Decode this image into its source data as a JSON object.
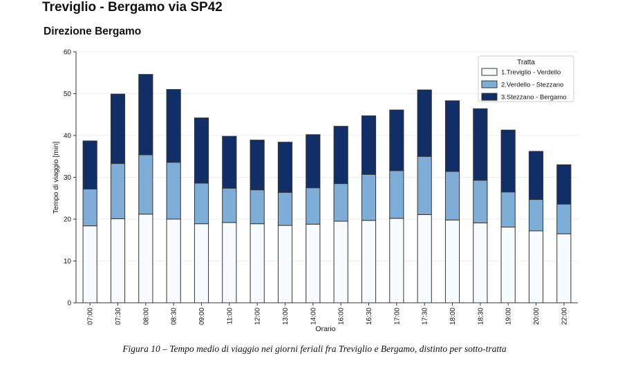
{
  "header": {
    "title": "Treviglio - Bergamo via SP42",
    "subtitle": "Direzione Bergamo"
  },
  "caption": "Figura 10 – Tempo medio di viaggio nei giorni feriali fra Treviglio e Bergamo, distinto per sotto-tratta",
  "colors": {
    "s1": "#f7fbff",
    "s2": "#7eadd8",
    "s3": "#122e66",
    "stroke": "#333333",
    "grid": "#eeeeee"
  },
  "chart_data": {
    "type": "bar",
    "stacked": true,
    "title": "Direzione Bergamo",
    "xlabel": "Orario",
    "ylabel": "Tempo di viaggio [min]",
    "ylim": [
      0,
      60
    ],
    "yticks": [
      0,
      10,
      20,
      30,
      40,
      50,
      60
    ],
    "grid": true,
    "legend": {
      "title": "Tratta",
      "placement": "top-right"
    },
    "categories": [
      "07:00",
      "07:30",
      "08:00",
      "08:30",
      "09:00",
      "11:00",
      "12:00",
      "13:00",
      "14:00",
      "16:00",
      "16:30",
      "17:00",
      "17:30",
      "18:00",
      "18:30",
      "19:00",
      "20:00",
      "22:00"
    ],
    "series": [
      {
        "name": "1.Treviglio - Verdello",
        "color": "#f7fbff",
        "values": [
          18.4,
          20.1,
          21.2,
          20.0,
          18.9,
          19.2,
          18.9,
          18.5,
          18.8,
          19.5,
          19.7,
          20.2,
          21.1,
          19.8,
          19.1,
          18.1,
          17.2,
          16.5
        ]
      },
      {
        "name": "2.Verdello - Stezzano",
        "color": "#7eadd8",
        "values": [
          8.8,
          13.2,
          14.2,
          13.6,
          9.7,
          8.2,
          8.1,
          7.9,
          8.7,
          9.0,
          11.0,
          11.4,
          13.9,
          11.6,
          10.2,
          8.4,
          7.5,
          7.1
        ]
      },
      {
        "name": "3.Stezzano - Bergamo",
        "color": "#122e66",
        "values": [
          11.5,
          16.6,
          19.2,
          17.4,
          15.6,
          12.4,
          11.9,
          12.0,
          12.7,
          13.7,
          14.0,
          14.5,
          15.9,
          16.9,
          17.1,
          14.8,
          11.5,
          9.4
        ]
      }
    ]
  }
}
